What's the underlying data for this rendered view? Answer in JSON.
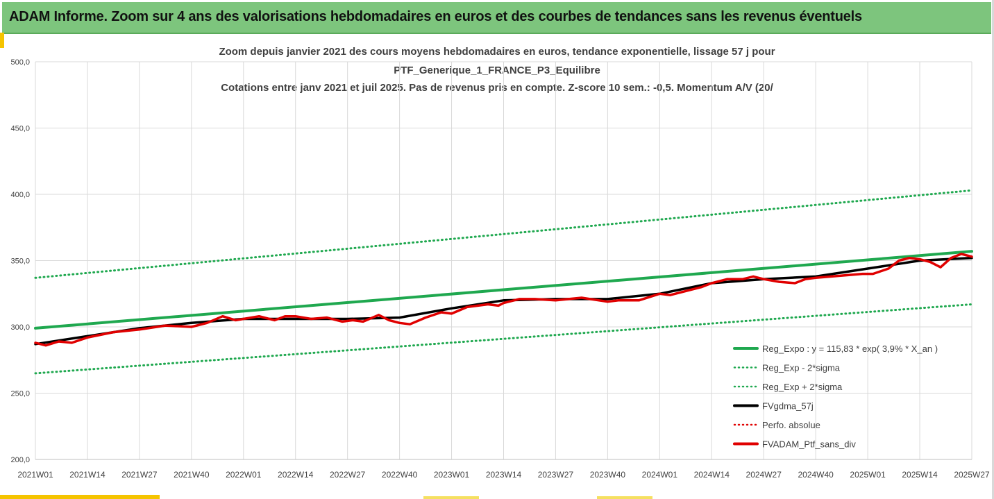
{
  "header": {
    "title": "ADAM Informe. Zoom sur 4 ans des valorisations hebdomadaires en euros et des courbes de tendances sans les revenus éventuels"
  },
  "chart_data": {
    "type": "line",
    "title_lines": [
      "Zoom depuis janvier 2021 des cours moyens hebdomadaires  en euros, tendance exponentielle, lissage 57 j pour",
      "PTF_Generique_1_FRANCE_P3_Equilibre",
      "Cotations entre janv 2021 et juil 2025. Pas de revenus pris en compte. Z-score 10 sem.: -0,5. Momentum A/V (20/"
    ],
    "xlabel": "",
    "ylabel": "",
    "ylim": [
      200,
      500
    ],
    "y_ticks": [
      "200,0",
      "250,0",
      "300,0",
      "350,0",
      "400,0",
      "450,0",
      "500,0"
    ],
    "x_ticks": [
      "2021W01",
      "2021W14",
      "2021W27",
      "2021W40",
      "2022W01",
      "2022W14",
      "2022W27",
      "2022W40",
      "2023W01",
      "2023W14",
      "2023W27",
      "2023W40",
      "2024W01",
      "2024W14",
      "2024W27",
      "2024W40",
      "2025W01",
      "2025W14",
      "2025W27"
    ],
    "grid": true,
    "legend_position": "bottom-right",
    "series": [
      {
        "name": "Reg_Expo : y = 115,83 * exp( 3,9% *  X_an )",
        "color": "#1fa84f",
        "style": "solid",
        "width": 4,
        "x": [
          0,
          18
        ],
        "values": [
          299,
          357
        ]
      },
      {
        "name": "Reg_Exp - 2*sigma",
        "color": "#1fa84f",
        "style": "dotted",
        "width": 3,
        "x": [
          0,
          18
        ],
        "values": [
          265,
          317
        ]
      },
      {
        "name": "Reg_Exp + 2*sigma",
        "color": "#1fa84f",
        "style": "dotted",
        "width": 3,
        "x": [
          0,
          18
        ],
        "values": [
          337,
          403
        ]
      },
      {
        "name": "FVgdma_57j",
        "color": "#000000",
        "style": "solid",
        "width": 3.5,
        "x": [
          0,
          1,
          2,
          3,
          4,
          5,
          6,
          7,
          8,
          9,
          10,
          11,
          12,
          13,
          14,
          15,
          16,
          17,
          18
        ],
        "values": [
          287,
          293,
          299,
          303,
          306,
          306,
          306,
          307,
          314,
          320,
          321,
          321,
          325,
          333,
          336,
          338,
          344,
          350,
          352
        ]
      },
      {
        "name": "Perfo. absolue",
        "color": "#e00000",
        "style": "dotted",
        "width": 2,
        "x": [],
        "values": []
      },
      {
        "name": "FVADAM_Ptf_sans_div",
        "color": "#e00000",
        "style": "solid",
        "width": 3.5,
        "x": [
          0,
          0.2,
          0.45,
          0.7,
          1.0,
          1.5,
          2.0,
          2.5,
          3.0,
          3.3,
          3.6,
          3.85,
          4.0,
          4.3,
          4.6,
          4.8,
          5.0,
          5.3,
          5.6,
          5.9,
          6.1,
          6.3,
          6.6,
          6.8,
          7.0,
          7.2,
          7.5,
          7.8,
          8.0,
          8.3,
          8.7,
          8.9,
          9.0,
          9.3,
          9.6,
          10.0,
          10.5,
          11.0,
          11.2,
          11.6,
          12.0,
          12.2,
          12.5,
          12.8,
          13.0,
          13.3,
          13.6,
          13.8,
          14.0,
          14.3,
          14.6,
          14.8,
          15.0,
          15.3,
          15.6,
          15.9,
          16.1,
          16.4,
          16.6,
          16.8,
          17.0,
          17.2,
          17.4,
          17.6,
          17.8,
          18.0
        ],
        "values": [
          288,
          286,
          289,
          288,
          292,
          296,
          298,
          301,
          300,
          303,
          308,
          305,
          306,
          308,
          305,
          308,
          308,
          306,
          307,
          304,
          305,
          304,
          309,
          305,
          303,
          302,
          307,
          311,
          310,
          315,
          317,
          316,
          318,
          321,
          321,
          320,
          322,
          319,
          320,
          320,
          325,
          324,
          327,
          330,
          333,
          336,
          336,
          338,
          336,
          334,
          333,
          336,
          337,
          338,
          339,
          340,
          340,
          344,
          350,
          352,
          351,
          349,
          345,
          352,
          355,
          353
        ]
      }
    ]
  }
}
